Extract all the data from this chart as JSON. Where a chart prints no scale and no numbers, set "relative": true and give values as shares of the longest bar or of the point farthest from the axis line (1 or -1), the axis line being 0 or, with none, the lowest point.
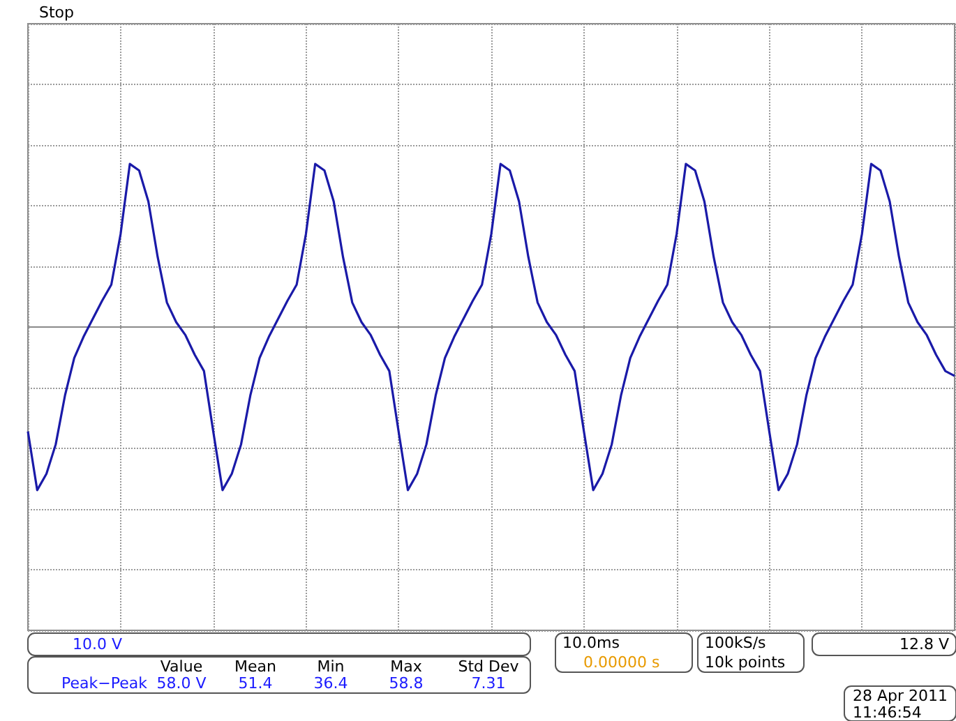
{
  "chart_data": {
    "type": "line",
    "relative": true,
    "grid": true,
    "line_style": "solid",
    "categories": [
      null,
      null,
      null,
      null,
      null,
      null,
      null,
      null,
      null,
      null,
      null,
      null,
      null,
      null,
      null,
      null,
      null,
      null,
      null,
      null,
      null,
      null,
      null,
      null,
      null,
      null,
      null,
      null,
      null,
      null,
      null,
      null,
      null,
      null,
      null,
      null,
      null,
      null,
      null,
      null,
      null,
      null,
      null,
      null,
      null,
      null,
      null,
      null,
      null,
      null,
      null,
      null,
      null,
      null,
      null,
      null,
      null,
      null,
      null,
      null,
      null,
      null,
      null,
      null,
      null,
      null,
      null,
      null,
      null,
      null,
      null,
      null,
      null,
      null,
      null,
      null,
      null,
      null,
      null,
      null,
      null,
      null,
      null,
      null,
      null,
      null,
      null,
      null,
      null,
      null,
      null,
      null,
      null,
      null,
      null,
      null,
      null,
      null,
      null,
      null,
      null
    ],
    "series": [
      {
        "color": "#1a1aa8",
        "values": [
          -0.64,
          -1.0,
          -0.9,
          -0.72,
          -0.42,
          -0.19,
          -0.06,
          0.05,
          0.16,
          0.26,
          0.57,
          1,
          0.96,
          0.77,
          0.43,
          0.15,
          0.03,
          -0.05,
          -0.17,
          -0.27,
          -0.64,
          -1.0,
          -0.9,
          -0.72,
          -0.42,
          -0.19,
          -0.06,
          0.05,
          0.16,
          0.26,
          0.57,
          1,
          0.96,
          0.77,
          0.43,
          0.15,
          0.03,
          -0.05,
          -0.17,
          -0.27,
          -0.64,
          -1.0,
          -0.9,
          -0.72,
          -0.42,
          -0.19,
          -0.06,
          0.05,
          0.16,
          0.26,
          0.57,
          1,
          0.96,
          0.77,
          0.43,
          0.15,
          0.03,
          -0.05,
          -0.17,
          -0.27,
          -0.64,
          -1.0,
          -0.9,
          -0.72,
          -0.42,
          -0.19,
          -0.06,
          0.05,
          0.16,
          0.26,
          0.57,
          1,
          0.96,
          0.77,
          0.43,
          0.15,
          0.03,
          -0.05,
          -0.17,
          -0.27,
          -0.64,
          -1.0,
          -0.9,
          -0.72,
          -0.42,
          -0.19,
          -0.06,
          0.05,
          0.16,
          0.26,
          0.57,
          1,
          0.96,
          0.77,
          0.43,
          0.15,
          0.03,
          -0.05,
          -0.17,
          -0.27,
          -0.3
        ]
      }
    ],
    "annotations": [
      "Stop",
      "10.0 V",
      "10.0ms",
      "0.00000 s",
      "100kS/s",
      "10k points",
      "12.8 V",
      "Value",
      "Mean",
      "Min",
      "Max",
      "Std Dev",
      "Peak−Peak",
      "58.0 V",
      "51.4",
      "36.4",
      "58.8",
      "7.31",
      "28 Apr 2011",
      "11:46:54"
    ]
  }
}
